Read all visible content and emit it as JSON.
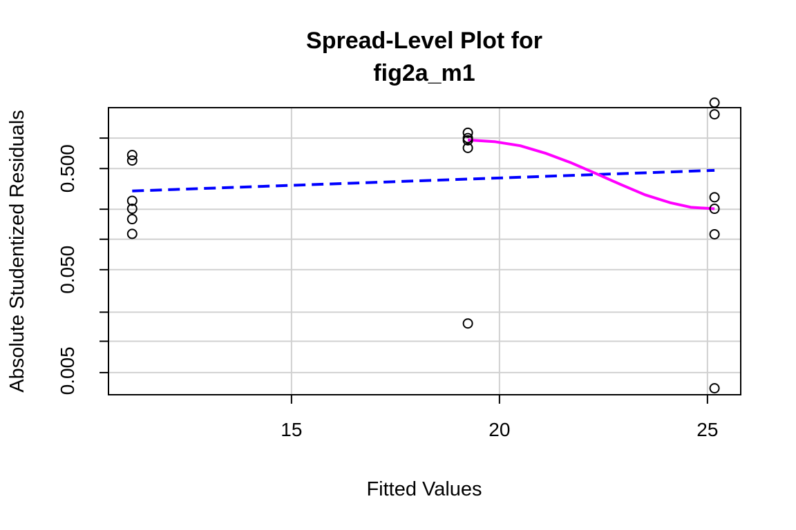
{
  "chart_data": {
    "type": "scatter",
    "title_lines": [
      "Spread-Level Plot for",
      "fig2a_m1"
    ],
    "xlabel": "Fitted Values",
    "ylabel": "Absolute Studentized Residuals",
    "x_scale": "linear",
    "y_scale": "log",
    "xlim": [
      10.6,
      25.8
    ],
    "ylim": [
      0.0029,
      2.0
    ],
    "x_ticks": [
      15,
      20,
      25
    ],
    "x_tick_labels": [
      "15",
      "20",
      "25"
    ],
    "y_ticks": [
      0.005,
      0.05,
      0.5
    ],
    "y_tick_labels": [
      "0.005",
      "0.050",
      "0.500"
    ],
    "x_grid": [
      15,
      20,
      25
    ],
    "y_grid": [
      0.0048,
      0.0098,
      0.019,
      0.05,
      0.1,
      0.198,
      0.5,
      1.0
    ],
    "grid": true,
    "points": [
      {
        "x": 11.17,
        "y": 0.68
      },
      {
        "x": 11.17,
        "y": 0.6
      },
      {
        "x": 11.17,
        "y": 0.24
      },
      {
        "x": 11.17,
        "y": 0.2
      },
      {
        "x": 11.17,
        "y": 0.158
      },
      {
        "x": 11.17,
        "y": 0.113
      },
      {
        "x": 19.24,
        "y": 1.13
      },
      {
        "x": 19.24,
        "y": 1.0
      },
      {
        "x": 19.24,
        "y": 0.95
      },
      {
        "x": 19.24,
        "y": 0.8
      },
      {
        "x": 19.24,
        "y": 0.0147
      },
      {
        "x": 25.17,
        "y": 2.24
      },
      {
        "x": 25.17,
        "y": 1.72
      },
      {
        "x": 25.17,
        "y": 0.26
      },
      {
        "x": 25.17,
        "y": 0.2
      },
      {
        "x": 25.17,
        "y": 0.112
      },
      {
        "x": 25.17,
        "y": 0.00336
      }
    ],
    "lines": [
      {
        "style": "dashed",
        "color": "#0000ff",
        "x": [
          11.17,
          25.17
        ],
        "y": [
          0.3,
          0.48
        ]
      },
      {
        "style": "solid",
        "color": "#ff00ff",
        "x": [
          19.24,
          19.9,
          20.5,
          21.1,
          21.7,
          22.3,
          22.9,
          23.5,
          24.1,
          24.6,
          25.17
        ],
        "y": [
          0.96,
          0.92,
          0.84,
          0.71,
          0.575,
          0.45,
          0.35,
          0.275,
          0.23,
          0.207,
          0.2
        ]
      }
    ]
  }
}
